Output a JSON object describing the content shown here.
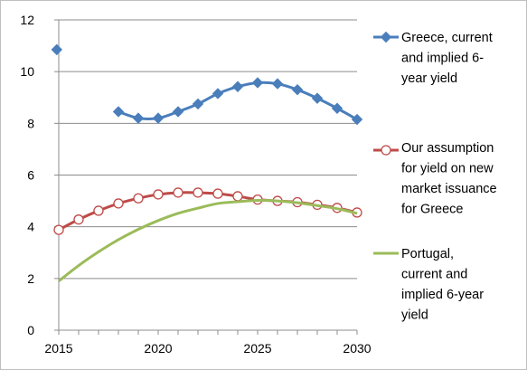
{
  "chart_data": {
    "type": "line",
    "title": "",
    "xlabel": "",
    "ylabel": "",
    "xlim": [
      2015,
      2030
    ],
    "ylim": [
      0,
      12
    ],
    "x_ticks": [
      2015,
      2020,
      2025,
      2030
    ],
    "y_ticks": [
      0,
      2,
      4,
      6,
      8,
      10,
      12
    ],
    "grid": true,
    "legend_position": "right",
    "series": [
      {
        "name": "Greece, current and implied 6-year yield",
        "legend_lines": [
          "Greece, current",
          "and implied 6-",
          "year yield"
        ],
        "color": "#4a7ebb",
        "marker": "diamond",
        "points": [
          {
            "x": 2014.9,
            "y": 10.85
          },
          {
            "x": 2018,
            "y": 8.45
          },
          {
            "x": 2019,
            "y": 8.2
          },
          {
            "x": 2020,
            "y": 8.2
          },
          {
            "x": 2021,
            "y": 8.45
          },
          {
            "x": 2022,
            "y": 8.75
          },
          {
            "x": 2023,
            "y": 9.15
          },
          {
            "x": 2024,
            "y": 9.42
          },
          {
            "x": 2025,
            "y": 9.57
          },
          {
            "x": 2026,
            "y": 9.53
          },
          {
            "x": 2027,
            "y": 9.3
          },
          {
            "x": 2028,
            "y": 8.97
          },
          {
            "x": 2029,
            "y": 8.58
          },
          {
            "x": 2030,
            "y": 8.15
          }
        ],
        "segments": [
          [
            1,
            13
          ]
        ]
      },
      {
        "name": "Our assumption for yield on new market issuance for Greece",
        "legend_lines": [
          "Our assumption",
          "for yield on new",
          "market issuance",
          "for Greece"
        ],
        "color": "#be4b48",
        "marker": "circle",
        "points": [
          {
            "x": 2015,
            "y": 3.88
          },
          {
            "x": 2016,
            "y": 4.28
          },
          {
            "x": 2017,
            "y": 4.62
          },
          {
            "x": 2018,
            "y": 4.9
          },
          {
            "x": 2019,
            "y": 5.1
          },
          {
            "x": 2020,
            "y": 5.25
          },
          {
            "x": 2021,
            "y": 5.32
          },
          {
            "x": 2022,
            "y": 5.32
          },
          {
            "x": 2023,
            "y": 5.28
          },
          {
            "x": 2024,
            "y": 5.18
          },
          {
            "x": 2025,
            "y": 5.05
          },
          {
            "x": 2026,
            "y": 5.0
          },
          {
            "x": 2027,
            "y": 4.95
          },
          {
            "x": 2028,
            "y": 4.85
          },
          {
            "x": 2029,
            "y": 4.73
          },
          {
            "x": 2030,
            "y": 4.55
          }
        ],
        "segments": [
          [
            0,
            15
          ]
        ]
      },
      {
        "name": "Portugal, current and implied 6-year yield",
        "legend_lines": [
          "Portugal,",
          "current and",
          "implied 6-year",
          "yield"
        ],
        "color": "#9bbb59",
        "marker": "none",
        "points": [
          {
            "x": 2015,
            "y": 1.9
          },
          {
            "x": 2016,
            "y": 2.5
          },
          {
            "x": 2017,
            "y": 3.03
          },
          {
            "x": 2018,
            "y": 3.5
          },
          {
            "x": 2019,
            "y": 3.9
          },
          {
            "x": 2020,
            "y": 4.24
          },
          {
            "x": 2021,
            "y": 4.52
          },
          {
            "x": 2022,
            "y": 4.72
          },
          {
            "x": 2023,
            "y": 4.9
          },
          {
            "x": 2024,
            "y": 4.97
          },
          {
            "x": 2025,
            "y": 5.02
          },
          {
            "x": 2026,
            "y": 5.0
          },
          {
            "x": 2027,
            "y": 4.93
          },
          {
            "x": 2028,
            "y": 4.82
          },
          {
            "x": 2029,
            "y": 4.7
          },
          {
            "x": 2030,
            "y": 4.52
          }
        ],
        "segments": [
          [
            0,
            15
          ]
        ]
      }
    ]
  }
}
